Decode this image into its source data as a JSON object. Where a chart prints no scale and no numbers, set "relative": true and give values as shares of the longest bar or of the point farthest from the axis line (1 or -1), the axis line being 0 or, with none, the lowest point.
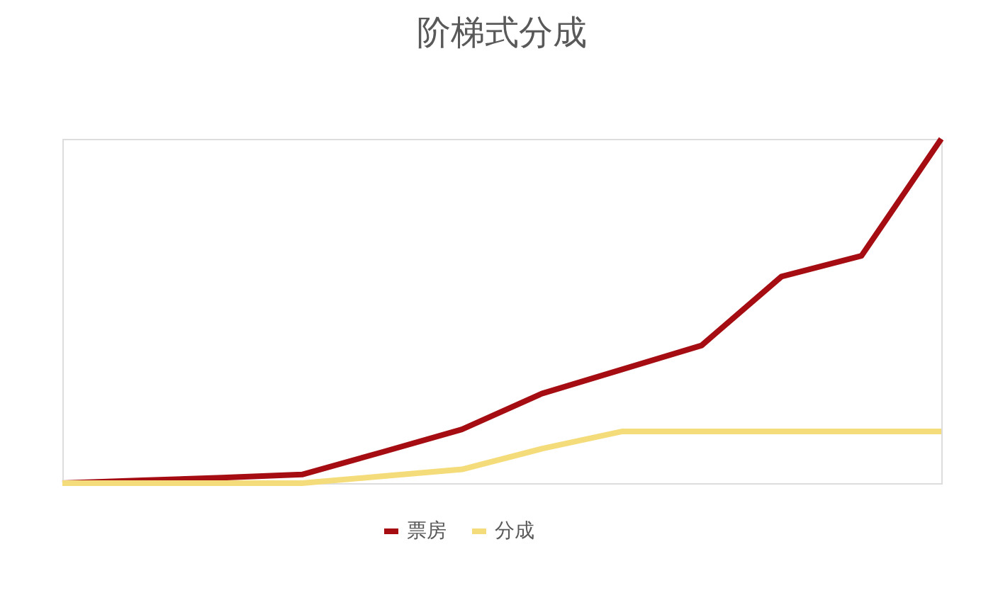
{
  "chart_data": {
    "type": "line",
    "title": "阶梯式分成",
    "relative": true,
    "legend": "bottom",
    "grid": false,
    "marker": "none",
    "categories": [
      null,
      null,
      null,
      null,
      null,
      null,
      null,
      null,
      null,
      null,
      null,
      null
    ],
    "series": [
      {
        "name": "票房",
        "color": "#a50d12",
        "values": [
          0,
          0.008,
          0.016,
          0.025,
          0.09,
          0.156,
          0.26,
          0.33,
          0.4,
          0.6,
          0.66,
          1
        ]
      },
      {
        "name": "分成",
        "color": "#f5dc7a",
        "values": [
          0,
          0,
          0,
          0,
          0.02,
          0.04,
          0.1,
          0.15,
          0.15,
          0.15,
          0.15,
          0.15
        ]
      }
    ]
  }
}
